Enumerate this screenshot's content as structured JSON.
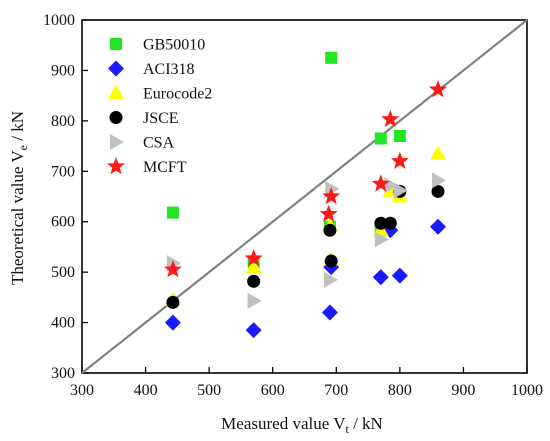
{
  "chart_data": {
    "type": "scatter",
    "xlabel": "Measured value V",
    "xlabel_sub": "t",
    "xlabel_unit": " / kN",
    "ylabel": "Theoretical value V",
    "ylabel_sub": "e",
    "ylabel_unit": " / kN",
    "xlim": [
      300,
      1000
    ],
    "ylim": [
      300,
      1000
    ],
    "xticks": [
      300,
      400,
      500,
      600,
      700,
      800,
      900,
      1000
    ],
    "yticks": [
      300,
      400,
      500,
      600,
      700,
      800,
      900,
      1000
    ],
    "reference_line": [
      [
        300,
        300
      ],
      [
        1000,
        1000
      ]
    ],
    "reference_color": "#808080",
    "legend_position": "top-left",
    "series": [
      {
        "name": "GB50010",
        "marker": "square",
        "color": "#22e622",
        "points": [
          [
            443,
            618
          ],
          [
            570,
            520
          ],
          [
            690,
            590
          ],
          [
            692,
            925
          ],
          [
            770,
            765
          ],
          [
            800,
            770
          ],
          [
            770,
            583
          ]
        ]
      },
      {
        "name": "ACI318",
        "marker": "diamond",
        "color": "#1a1aff",
        "points": [
          [
            443,
            400
          ],
          [
            570,
            385
          ],
          [
            690,
            420
          ],
          [
            692,
            510
          ],
          [
            770,
            490
          ],
          [
            800,
            493
          ],
          [
            785,
            583
          ],
          [
            860,
            590
          ]
        ]
      },
      {
        "name": "Eurocode2",
        "marker": "triangle-up",
        "color": "#ffff00",
        "points": [
          [
            443,
            445
          ],
          [
            570,
            510
          ],
          [
            690,
            592
          ],
          [
            692,
            525
          ],
          [
            770,
            583
          ],
          [
            785,
            660
          ],
          [
            800,
            650
          ],
          [
            860,
            735
          ]
        ]
      },
      {
        "name": "JSCE",
        "marker": "circle",
        "color": "#000000",
        "points": [
          [
            443,
            440
          ],
          [
            570,
            482
          ],
          [
            690,
            583
          ],
          [
            692,
            522
          ],
          [
            770,
            597
          ],
          [
            785,
            597
          ],
          [
            800,
            660
          ],
          [
            860,
            660
          ]
        ]
      },
      {
        "name": "CSA",
        "marker": "triangle-right",
        "color": "#c0c0c0",
        "points": [
          [
            443,
            518
          ],
          [
            570,
            443
          ],
          [
            690,
            485
          ],
          [
            692,
            665
          ],
          [
            770,
            565
          ],
          [
            785,
            672
          ],
          [
            800,
            662
          ],
          [
            860,
            682
          ]
        ]
      },
      {
        "name": "MCFT",
        "marker": "star",
        "color": "#ff1a1a",
        "points": [
          [
            443,
            505
          ],
          [
            570,
            527
          ],
          [
            688,
            615
          ],
          [
            692,
            650
          ],
          [
            770,
            675
          ],
          [
            785,
            803
          ],
          [
            800,
            720
          ],
          [
            860,
            862
          ]
        ]
      }
    ]
  }
}
